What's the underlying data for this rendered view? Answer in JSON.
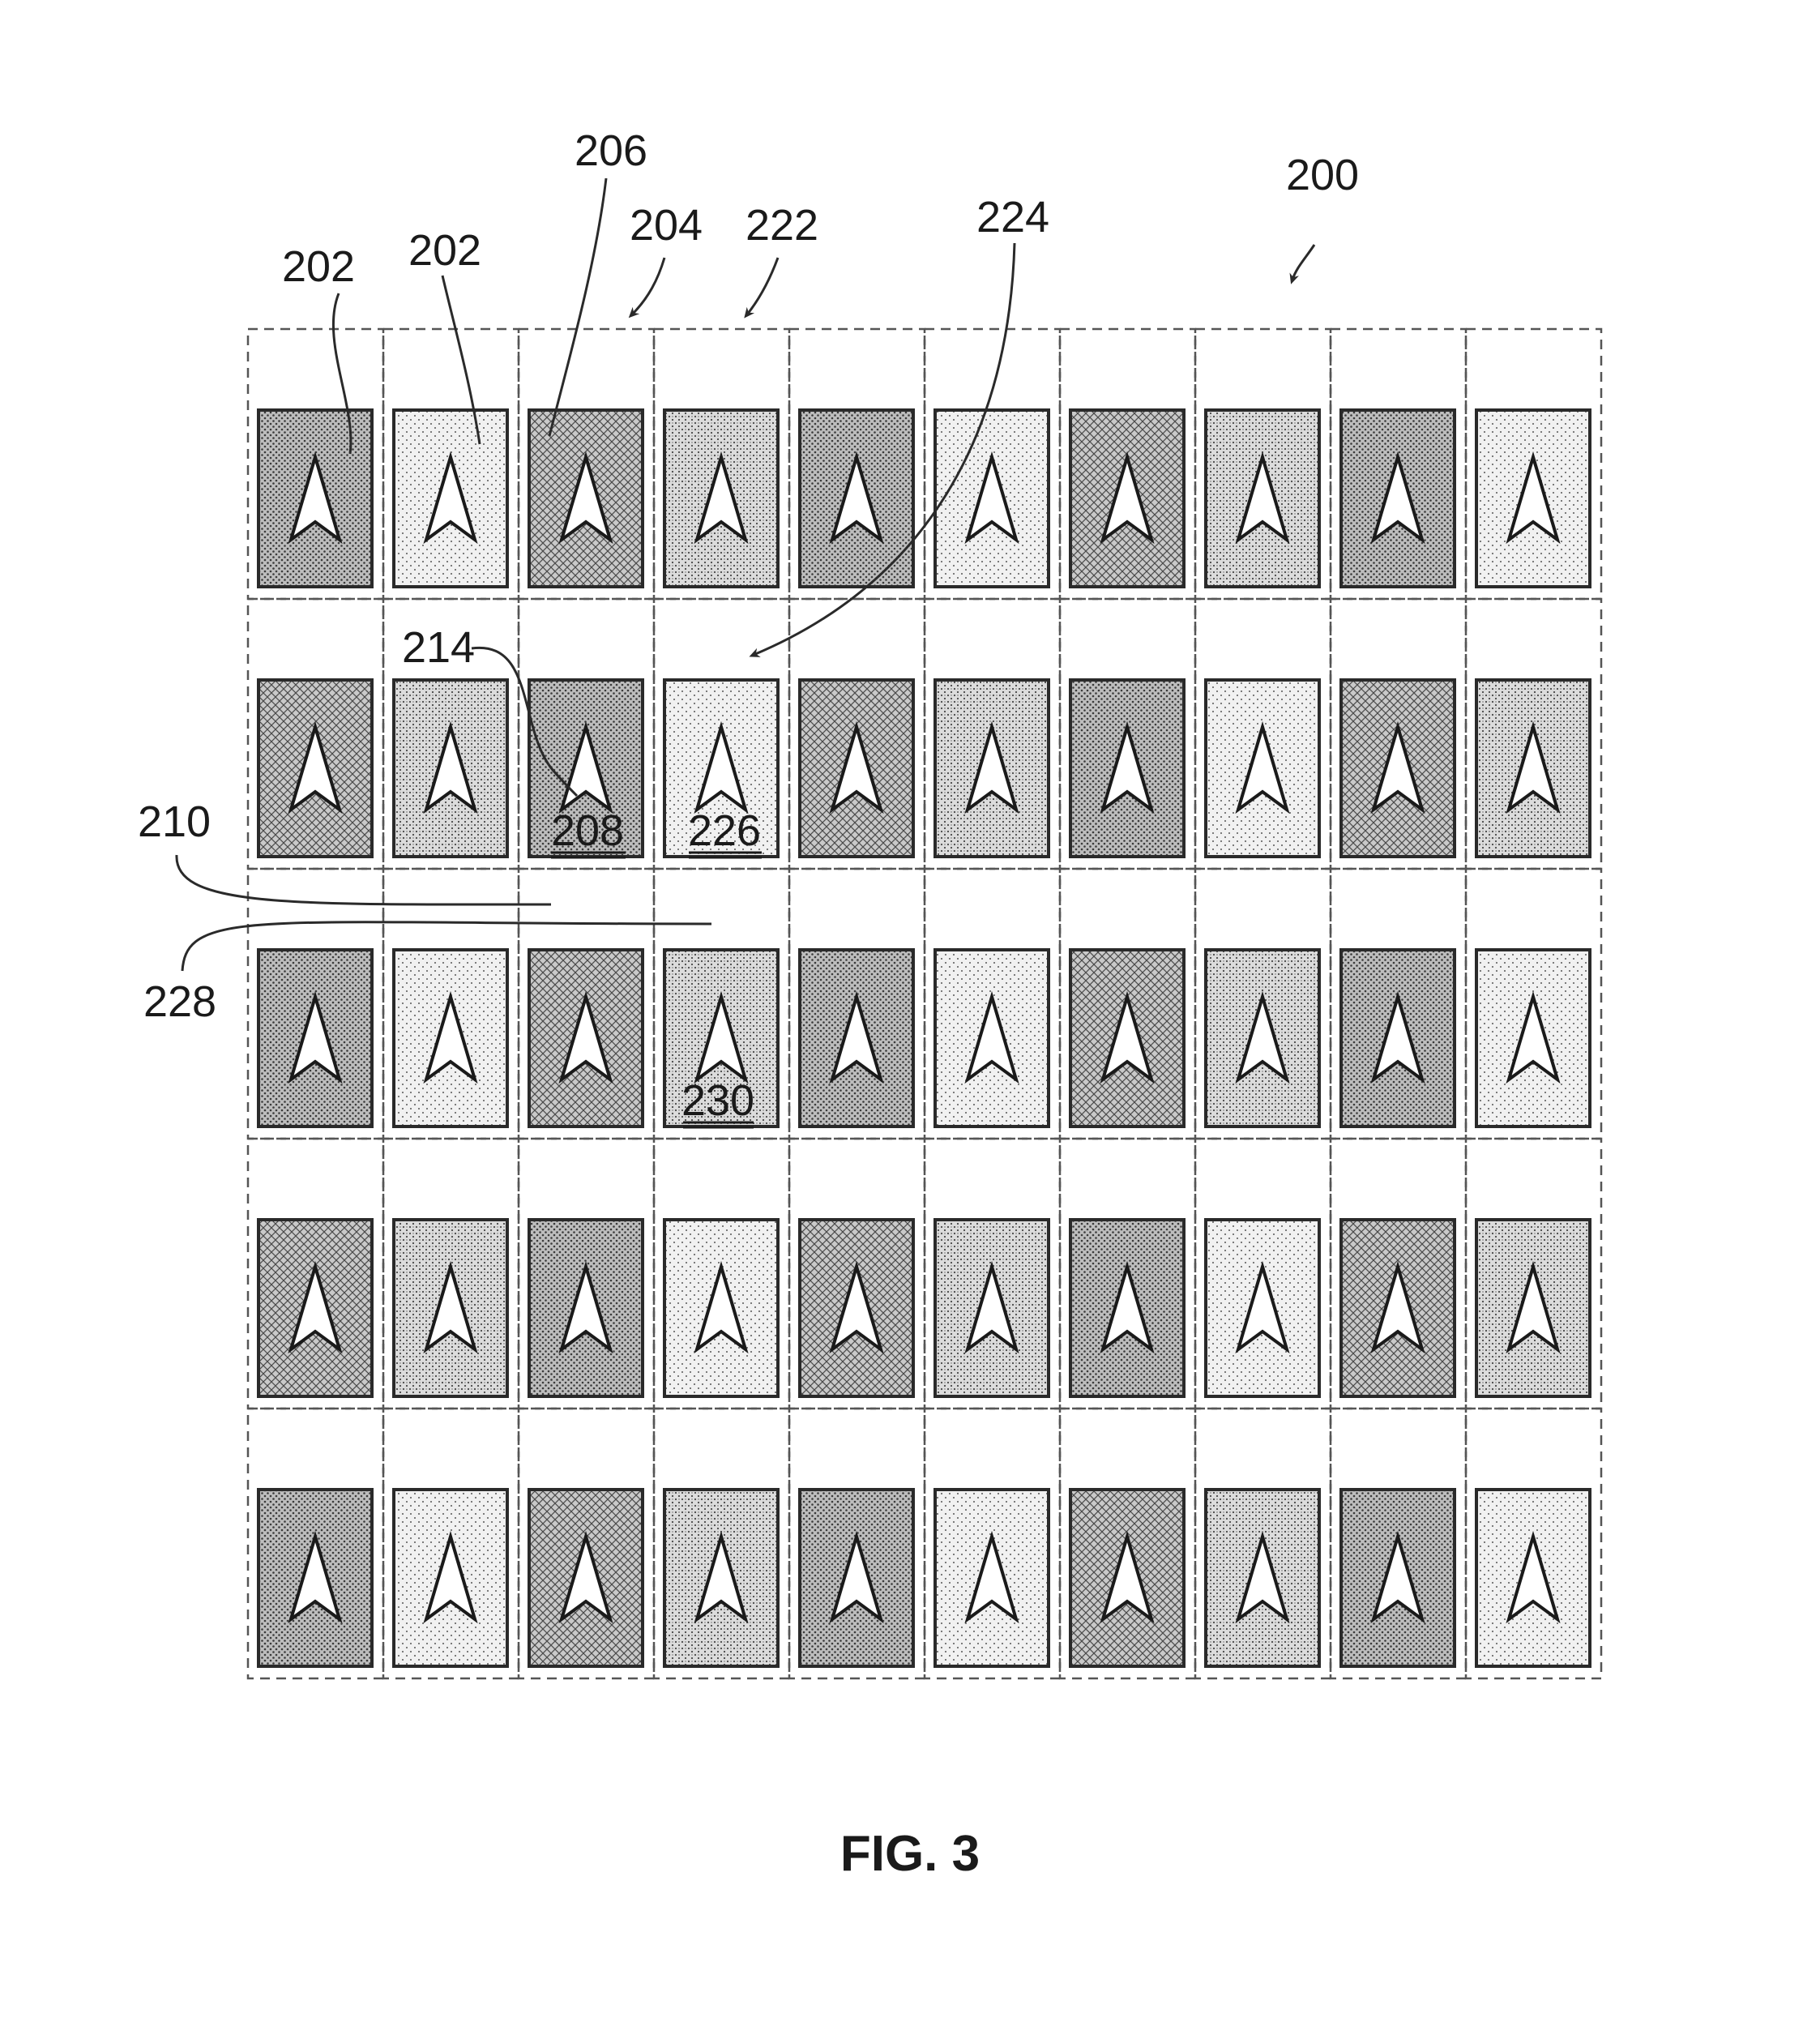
{
  "figure": {
    "caption": "FIG. 3",
    "grid": {
      "columns": 10,
      "rows": 5
    },
    "tile_patterns": {
      "dense-dots": "#9a9a9a",
      "light-dots": "#e2e2e2",
      "crosshatch": "#b8b8b8",
      "medium-dots": "#c6c6c6"
    },
    "row_patterns": [
      [
        "dense-dots",
        "light-dots",
        "crosshatch",
        "medium-dots",
        "dense-dots",
        "light-dots",
        "crosshatch",
        "medium-dots",
        "dense-dots",
        "light-dots"
      ],
      [
        "crosshatch",
        "medium-dots",
        "dense-dots",
        "light-dots",
        "crosshatch",
        "medium-dots",
        "dense-dots",
        "light-dots",
        "crosshatch",
        "medium-dots"
      ],
      [
        "dense-dots",
        "light-dots",
        "crosshatch",
        "medium-dots",
        "dense-dots",
        "light-dots",
        "crosshatch",
        "medium-dots",
        "dense-dots",
        "light-dots"
      ],
      [
        "crosshatch",
        "medium-dots",
        "dense-dots",
        "light-dots",
        "crosshatch",
        "medium-dots",
        "dense-dots",
        "light-dots",
        "crosshatch",
        "medium-dots"
      ],
      [
        "dense-dots",
        "light-dots",
        "crosshatch",
        "medium-dots",
        "dense-dots",
        "light-dots",
        "crosshatch",
        "medium-dots",
        "dense-dots",
        "light-dots"
      ]
    ],
    "reference_labels": {
      "r200": "200",
      "r202a": "202",
      "r202b": "202",
      "r204": "204",
      "r206": "206",
      "r210": "210",
      "r214": "214",
      "r222": "222",
      "r224": "224",
      "r228": "228",
      "r208": "208",
      "r226": "226",
      "r230": "230"
    }
  }
}
